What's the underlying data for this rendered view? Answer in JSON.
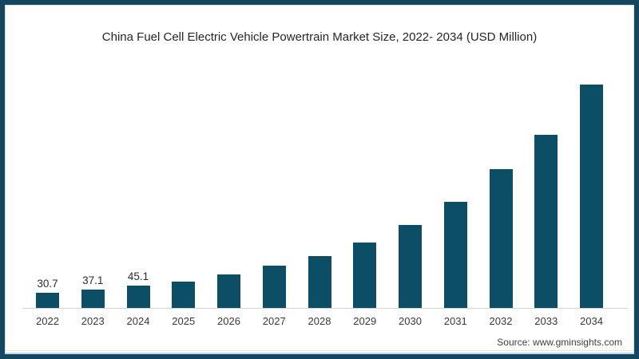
{
  "page": {
    "title": "China Fuel Cell Electric Vehicle Powertrain Market Size, 2022- 2034 (USD Million)",
    "source": "Source: www.gminsights.com"
  },
  "colors": {
    "bar": "#0b4e66",
    "frame": "#15465f",
    "axis_line": "#d4d4d4",
    "title_text": "#262626",
    "label_text": "#383838",
    "source_text": "#404040"
  },
  "chart_data": {
    "type": "bar",
    "title": "China Fuel Cell Electric Vehicle Powertrain Market Size, 2022- 2034 (USD Million)",
    "categories": [
      "2022",
      "2023",
      "2024",
      "2025",
      "2026",
      "2027",
      "2028",
      "2029",
      "2030",
      "2031",
      "2032",
      "2033",
      "2034"
    ],
    "values": [
      30.7,
      37.1,
      45.1,
      53,
      66,
      84,
      104,
      131,
      166,
      212,
      277,
      345,
      445
    ],
    "value_labels": [
      "30.7",
      "37.1",
      "45.1",
      "",
      "",
      "",
      "",
      "",
      "",
      "",
      "",
      "",
      ""
    ],
    "values_note": "Only 2022-2024 bars carry data labels in the image; 2025-2034 values estimated from bar heights",
    "xlabel": "",
    "ylabel": "USD Million",
    "ylim": [
      0,
      477
    ],
    "grid": false,
    "legend": "none",
    "source": "Source: www.gminsights.com"
  }
}
